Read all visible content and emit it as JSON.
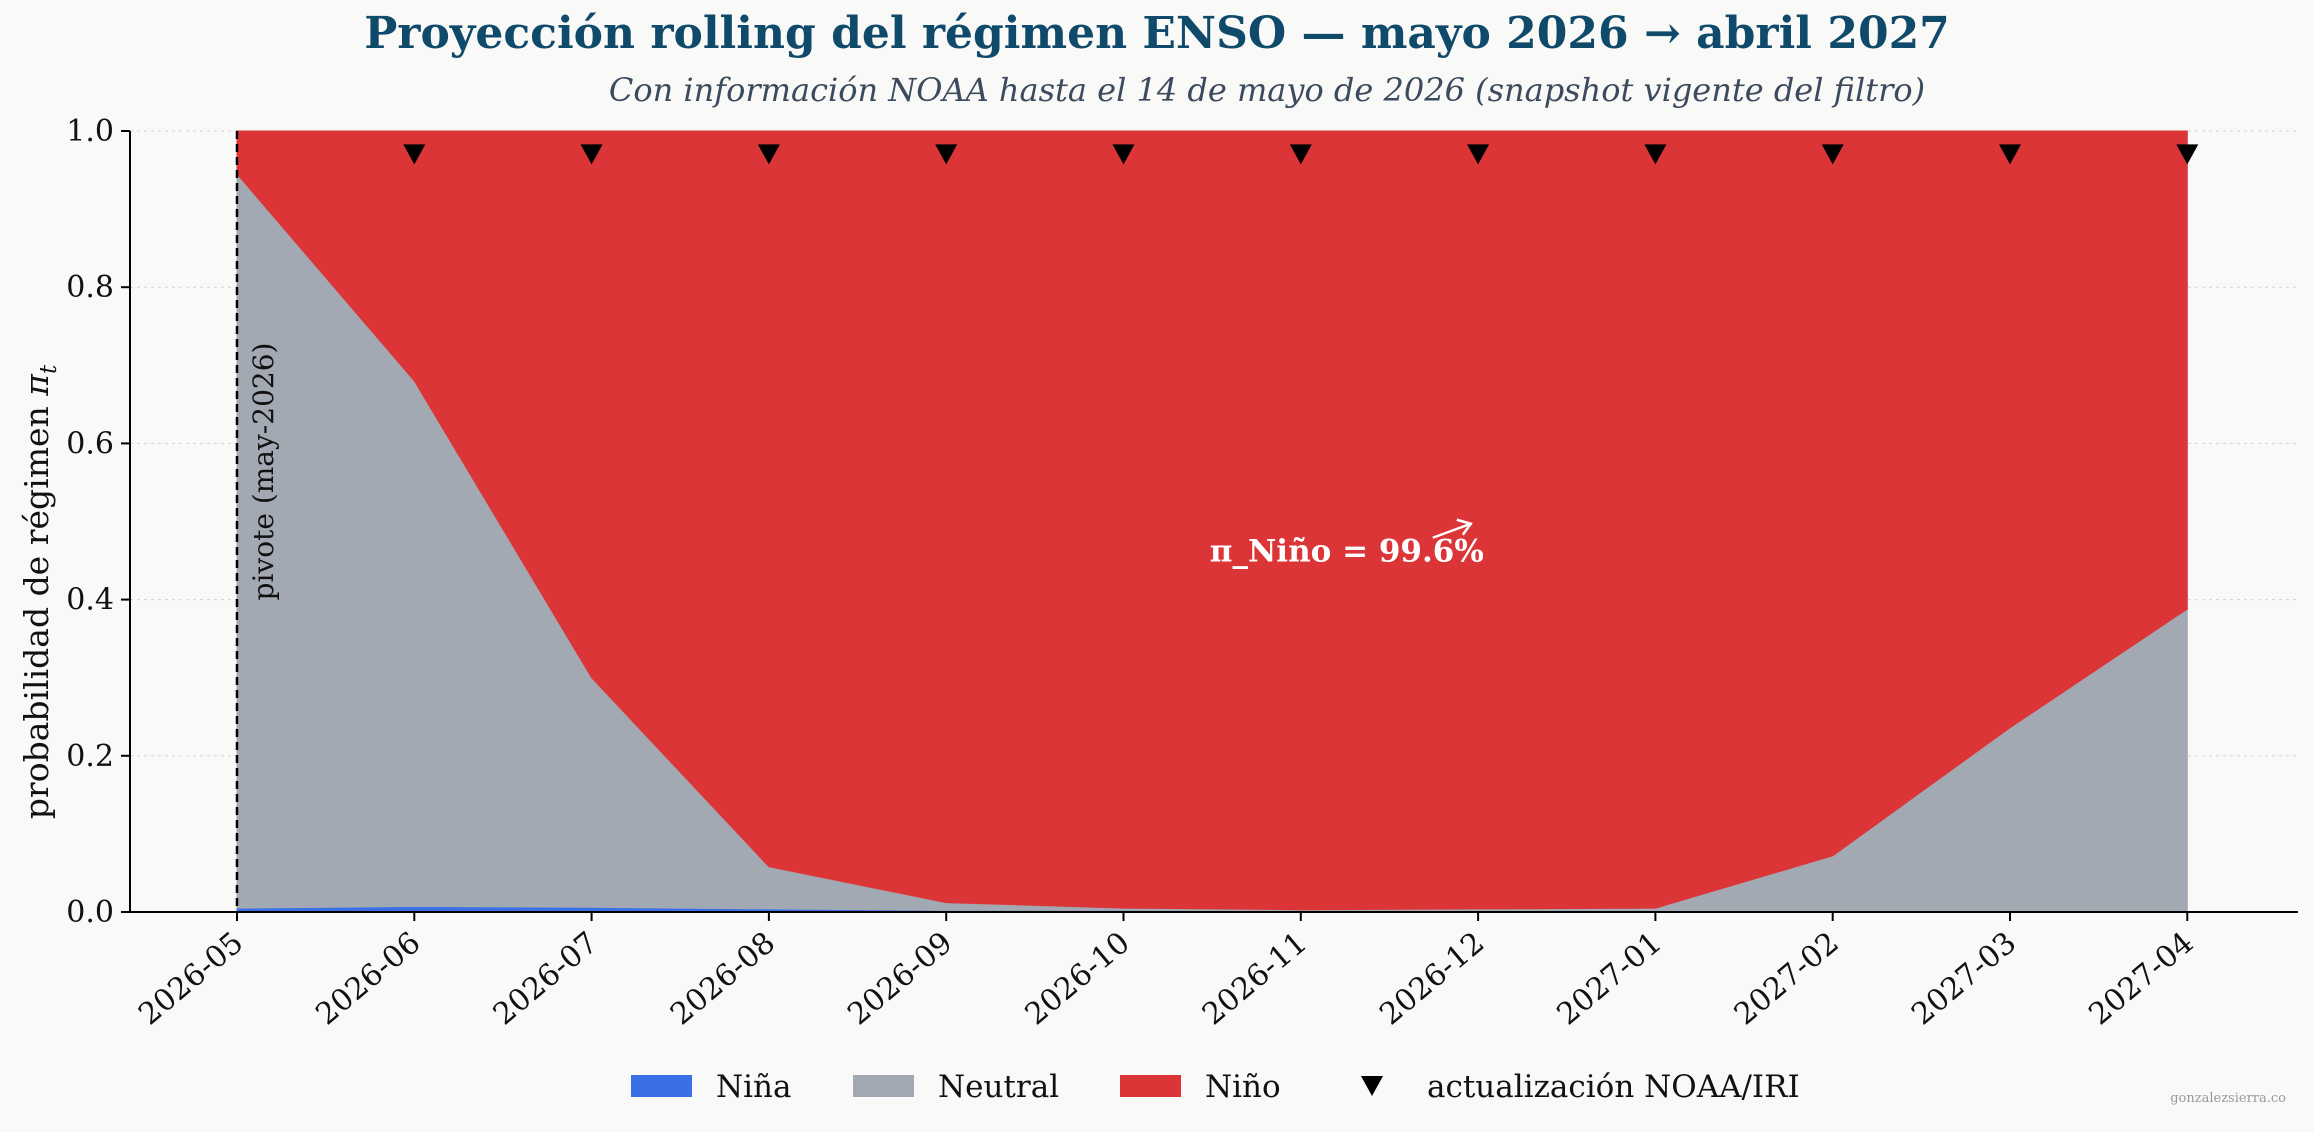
{
  "title": "Proyección rolling del régimen ENSO — mayo 2026 → abril 2027",
  "subtitle": "Con información NOAA hasta el 14 de mayo de 2026 (snapshot vigente del filtro)",
  "watermark": "gonzalezsierra.co",
  "chart_data": {
    "type": "area",
    "stacked": true,
    "x": [
      "2026-05",
      "2026-06",
      "2026-07",
      "2026-08",
      "2026-09",
      "2026-10",
      "2026-11",
      "2026-12",
      "2027-01",
      "2027-02",
      "2027-03",
      "2027-04"
    ],
    "xlim": [
      "2026-05",
      "2027-05"
    ],
    "ylim": [
      0.0,
      1.0
    ],
    "yticks": [
      "0.0",
      "0.2",
      "0.4",
      "0.6",
      "0.8",
      "1.0"
    ],
    "ylabel_text": "probabilidad de régimen ",
    "ylabel_symbol": "π",
    "ylabel_subscript": "t",
    "grid": true,
    "legend_position": "bottom-center",
    "series": [
      {
        "name": "Niña",
        "color": "#3a6fe6",
        "values": [
          0.005,
          0.007,
          0.006,
          0.004,
          0.002,
          0.002,
          0.001,
          0.001,
          0.001,
          0.001,
          0.001,
          0.001
        ]
      },
      {
        "name": "Neutral",
        "color": "#a3a9b2",
        "values": [
          0.94,
          0.673,
          0.294,
          0.054,
          0.01,
          0.003,
          0.002,
          0.003,
          0.004,
          0.071,
          0.235,
          0.387
        ]
      },
      {
        "name": "Niño",
        "color": "#dc3537",
        "values": [
          0.055,
          0.32,
          0.7,
          0.942,
          0.988,
          0.995,
          0.997,
          0.996,
          0.995,
          0.928,
          0.764,
          0.612
        ]
      }
    ],
    "update_markers": {
      "name": "actualización NOAA/IRI",
      "color": "#000000",
      "x": [
        "2026-06",
        "2026-07",
        "2026-08",
        "2026-09",
        "2026-10",
        "2026-11",
        "2026-12",
        "2027-01",
        "2027-02",
        "2027-03",
        "2027-04"
      ],
      "y": 0.97
    },
    "pivot": {
      "x": "2026-05",
      "label": "pivote (may-2026)"
    },
    "annotation": {
      "text": "π_Niño = 99.6%",
      "x": "2026-11",
      "y": 0.46
    }
  }
}
